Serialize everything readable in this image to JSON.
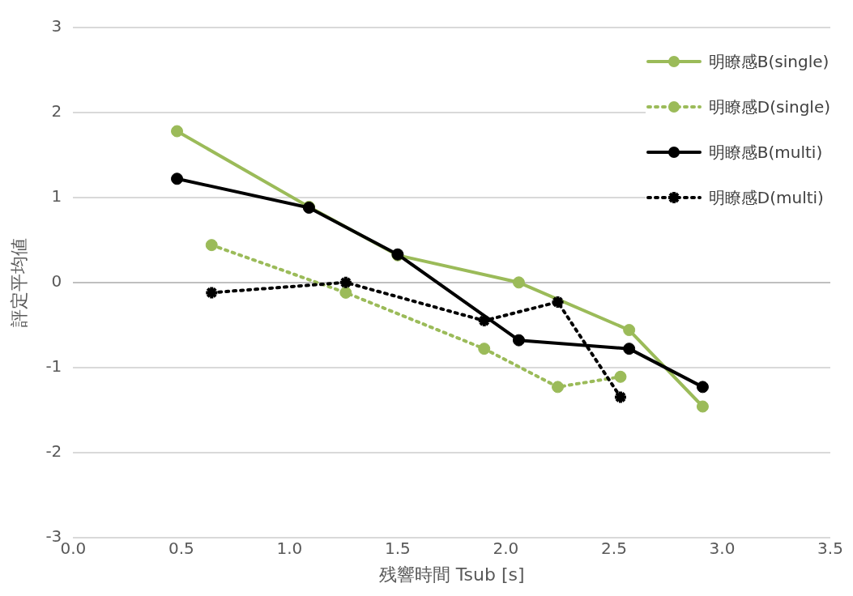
{
  "chart_data": {
    "type": "line",
    "xlabel": "残響時間 Tsub [s]",
    "ylabel": "評定平均値",
    "xlim": [
      0,
      3.5
    ],
    "xticks": [
      {
        "value": 0,
        "label": "0.0"
      },
      {
        "value": 0.5,
        "label": "0.5"
      },
      {
        "value": 1,
        "label": "1.0"
      },
      {
        "value": 1.5,
        "label": "1.5"
      },
      {
        "value": 2,
        "label": "2.0"
      },
      {
        "value": 2.5,
        "label": "2.5"
      },
      {
        "value": 3,
        "label": "3.0"
      },
      {
        "value": 3.5,
        "label": "3.5"
      }
    ],
    "ylim": [
      -3,
      3
    ],
    "yticks": [
      -3,
      -2,
      -1,
      0,
      1,
      2,
      3
    ],
    "grid": "y",
    "legend": "top right",
    "marker": "circle",
    "series": [
      {
        "name": "明瞭感B(single)",
        "color": "#9bbb59",
        "line_style": "solid",
        "x": [
          0.48,
          1.09,
          1.5,
          2.06,
          2.57,
          2.91
        ],
        "values": [
          1.78,
          0.89,
          0.32,
          0,
          -0.56,
          -1.46
        ]
      },
      {
        "name": "明瞭感D(single)",
        "color": "#9bbb59",
        "line_style": "dotted",
        "x": [
          0.64,
          1.26,
          1.9,
          2.24,
          2.53
        ],
        "values": [
          0.44,
          -0.12,
          -0.78,
          -1.23,
          -1.11
        ]
      },
      {
        "name": "明瞭感B(multi)",
        "color": "#000000",
        "line_style": "solid",
        "x": [
          0.48,
          1.09,
          1.5,
          2.06,
          2.57,
          2.91
        ],
        "values": [
          1.22,
          0.88,
          0.33,
          -0.68,
          -0.78,
          -1.23
        ]
      },
      {
        "name": "明瞭感D(multi)",
        "color": "#000000",
        "line_style": "dotted",
        "marker": "cross",
        "x": [
          0.64,
          1.26,
          1.9,
          2.24,
          2.53
        ],
        "values": [
          -0.12,
          0,
          -0.45,
          -0.23,
          -1.35
        ]
      }
    ]
  }
}
